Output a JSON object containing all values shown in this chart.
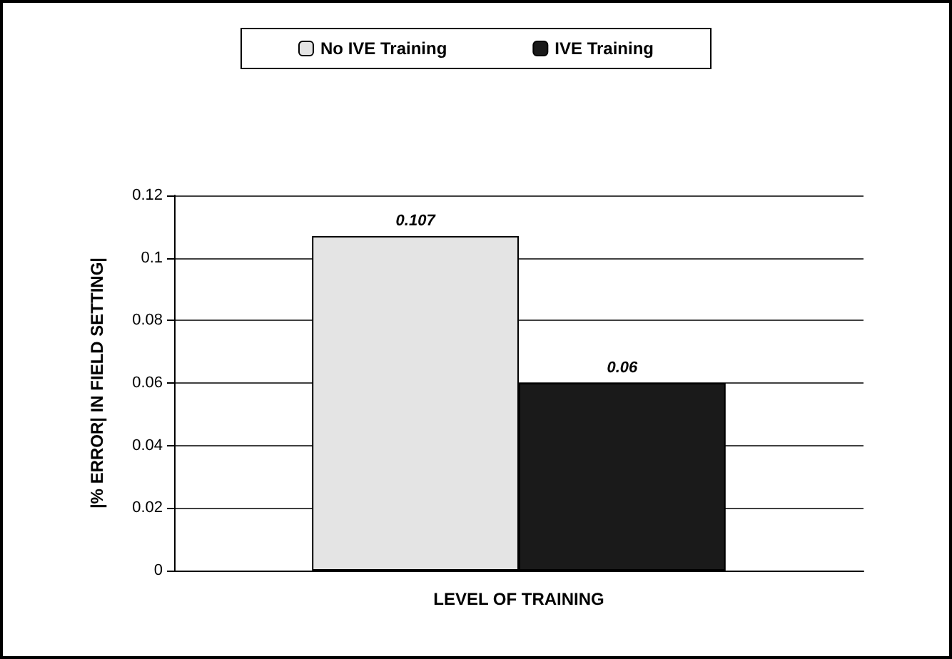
{
  "chart_data": {
    "type": "bar",
    "xlabel": "LEVEL OF TRAINING",
    "ylabel": "|% ERROR| IN FIELD SETTING|",
    "categories": [
      null
    ],
    "series": [
      {
        "name": "No IVE Training",
        "color": "#e4e4e4",
        "values": [
          0.107
        ]
      },
      {
        "name": "IVE Training",
        "color": "#1a1a1a",
        "values": [
          0.06
        ]
      }
    ],
    "ylim": [
      0,
      0.12
    ],
    "yticks": [
      0,
      0.02,
      0.04,
      0.06,
      0.08,
      0.1,
      0.12
    ],
    "grid": "y",
    "legend": "top",
    "data_labels": true
  }
}
